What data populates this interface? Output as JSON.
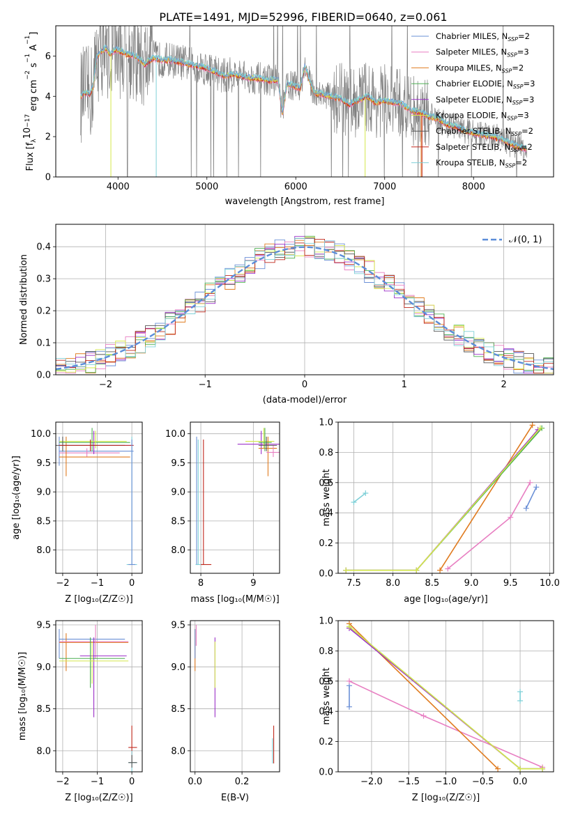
{
  "title": "PLATE=1491, MJD=52996, FIBERID=0640, z=0.061",
  "colors": {
    "chabrier_miles": "#6a8fd6",
    "salpeter_miles": "#e87fc2",
    "kroupa_miles": "#e07b1f",
    "chabrier_elodie": "#4caf50",
    "salpeter_elodie": "#9b30c8",
    "kroupa_elodie": "#d4e84a",
    "chabrier_stelib": "#555555",
    "salpeter_stelib": "#c0281c",
    "kroupa_stelib": "#7fd0d8",
    "data_spectrum": "#808080",
    "normal_curve": "#5b8dd9",
    "grid": "#b0b0b0"
  },
  "legend": [
    {
      "label": "Chabrier MILES, N",
      "sub": "SSP",
      "suffix": "=2",
      "color_key": "chabrier_miles"
    },
    {
      "label": "Salpeter MILES, N",
      "sub": "SSP",
      "suffix": "=3",
      "color_key": "salpeter_miles"
    },
    {
      "label": "Kroupa MILES, N",
      "sub": "SSP",
      "suffix": "=2",
      "color_key": "kroupa_miles"
    },
    {
      "label": "Chabrier ELODIE, N",
      "sub": "SSP",
      "suffix": "=3",
      "color_key": "chabrier_elodie"
    },
    {
      "label": "Salpeter ELODIE, N",
      "sub": "SSP",
      "suffix": "=3",
      "color_key": "salpeter_elodie"
    },
    {
      "label": "Kroupa ELODIE, N",
      "sub": "SSP",
      "suffix": "=3",
      "color_key": "kroupa_elodie"
    },
    {
      "label": "Chabrier STELIB, N",
      "sub": "SSP",
      "suffix": "=2",
      "color_key": "chabrier_stelib"
    },
    {
      "label": "Salpeter STELIB, N",
      "sub": "SSP",
      "suffix": "=2",
      "color_key": "salpeter_stelib"
    },
    {
      "label": "Kroupa STELIB, N",
      "sub": "SSP",
      "suffix": "=2",
      "color_key": "kroupa_stelib"
    }
  ],
  "chart_data": [
    {
      "id": "spectrum",
      "type": "line",
      "xlabel": "wavelength [Angstrom, rest frame]",
      "ylabel": "Flux [f",
      "ylabel_parts": [
        "λ",
        "10",
        "−17",
        " erg cm",
        "−2",
        " s",
        "−1",
        " A",
        "−1",
        "]"
      ],
      "xlim": [
        3300,
        8900
      ],
      "ylim": [
        0,
        7.5
      ],
      "xticks": [
        4000,
        5000,
        6000,
        7000,
        8000
      ],
      "yticks": [
        0,
        2,
        4,
        6
      ],
      "model_continuum": {
        "x": [
          3580,
          3620,
          3680,
          3720,
          3760,
          3800,
          3860,
          3920,
          3960,
          4000,
          4100,
          4200,
          4300,
          4400,
          4500,
          4600,
          4700,
          4800,
          4900,
          5000,
          5100,
          5200,
          5300,
          5400,
          5500,
          5600,
          5700,
          5800,
          5850,
          5900,
          6000,
          6050,
          6100,
          6200,
          6300,
          6400,
          6500,
          6600,
          6700,
          6800,
          6900,
          7000,
          7100,
          7200,
          7300,
          7400,
          7500,
          7600,
          7700,
          7800,
          7900,
          8000,
          8100,
          8200,
          8300,
          8400,
          8500,
          8600
        ],
        "y": [
          4.0,
          4.2,
          4.1,
          4.5,
          5.9,
          6.2,
          6.4,
          6.1,
          6.3,
          6.3,
          6.1,
          6.0,
          5.6,
          5.9,
          5.8,
          5.8,
          5.7,
          5.6,
          5.5,
          5.4,
          5.2,
          5.0,
          5.1,
          5.0,
          4.9,
          4.9,
          4.8,
          4.8,
          3.1,
          4.6,
          4.5,
          4.4,
          5.5,
          4.2,
          4.1,
          4.0,
          3.9,
          3.6,
          3.8,
          4.0,
          3.7,
          3.8,
          3.7,
          3.6,
          3.3,
          3.2,
          3.0,
          2.9,
          2.6,
          2.5,
          2.3,
          2.2,
          2.1,
          2.0,
          1.9,
          1.7,
          1.5,
          1.4
        ]
      }
    },
    {
      "id": "residuals",
      "type": "line",
      "xlabel": "(data-model)/error",
      "ylabel": "Normed distribution",
      "xlim": [
        -2.5,
        2.5
      ],
      "ylim": [
        0,
        0.47
      ],
      "xticks": [
        -2,
        -1,
        0,
        1,
        2
      ],
      "yticks": [
        0.0,
        0.1,
        0.2,
        0.3,
        0.4
      ],
      "legend_label": "𝒩(0, 1)"
    },
    {
      "id": "age_vs_Z",
      "type": "scatter",
      "xlabel": "Z [log₁₀(Z/Z☉)]",
      "ylabel": "age  [log₁₀(age/yr)]",
      "xlim": [
        -2.2,
        0.3
      ],
      "ylim": [
        7.6,
        10.2
      ],
      "xticks": [
        -2,
        -1,
        0
      ],
      "yticks": [
        8.0,
        8.5,
        9.0,
        9.5,
        10.0
      ]
    },
    {
      "id": "age_vs_mass",
      "type": "scatter",
      "xlabel": "mass [log₁₀(M/M☉)]",
      "xlim": [
        7.8,
        9.5
      ],
      "ylim": [
        7.6,
        10.2
      ],
      "xticks": [
        8,
        9
      ],
      "yticks": [
        8.0,
        8.5,
        9.0,
        9.5,
        10.0
      ]
    },
    {
      "id": "weight_vs_age",
      "type": "line",
      "xlabel": "age  [log₁₀(age/yr)]",
      "ylabel": "mass weight",
      "xlim": [
        7.3,
        10.05
      ],
      "ylim": [
        0,
        1.0
      ],
      "xticks": [
        7.5,
        8.0,
        8.5,
        9.0,
        9.5,
        10.0
      ],
      "yticks": [
        0.0,
        0.2,
        0.4,
        0.6,
        0.8,
        1.0
      ],
      "series": [
        {
          "color_key": "chabrier_miles",
          "x": [
            9.7,
            9.83
          ],
          "y": [
            0.43,
            0.57
          ]
        },
        {
          "color_key": "salpeter_miles",
          "x": [
            8.7,
            9.5,
            9.75
          ],
          "y": [
            0.03,
            0.37,
            0.6
          ]
        },
        {
          "color_key": "kroupa_miles",
          "x": [
            8.6,
            9.78
          ],
          "y": [
            0.02,
            0.98
          ]
        },
        {
          "color_key": "chabrier_elodie",
          "x": [
            7.4,
            8.3,
            9.9
          ],
          "y": [
            0.02,
            0.02,
            0.96
          ]
        },
        {
          "color_key": "salpeter_elodie",
          "x": [
            7.4,
            8.3,
            9.85
          ],
          "y": [
            0.02,
            0.02,
            0.95
          ]
        },
        {
          "color_key": "kroupa_elodie",
          "x": [
            7.4,
            8.3,
            9.88
          ],
          "y": [
            0.02,
            0.02,
            0.96
          ]
        },
        {
          "color_key": "kroupa_stelib",
          "x": [
            7.5,
            7.65
          ],
          "y": [
            0.47,
            0.53
          ]
        }
      ]
    },
    {
      "id": "mass_vs_Z",
      "type": "scatter",
      "xlabel": "Z [log₁₀(Z/Z☉)]",
      "ylabel": "mass [log₁₀(M/M☉)]",
      "xlim": [
        -2.2,
        0.3
      ],
      "ylim": [
        7.75,
        9.55
      ],
      "xticks": [
        -2,
        -1,
        0
      ],
      "yticks": [
        8.0,
        8.5,
        9.0,
        9.5
      ]
    },
    {
      "id": "mass_vs_ebv",
      "type": "scatter",
      "xlabel": "E(B-V)",
      "xlim": [
        -0.02,
        0.36
      ],
      "ylim": [
        7.75,
        9.55
      ],
      "xticks": [
        0.0,
        0.2
      ],
      "yticks": [
        8.0,
        8.5,
        9.0,
        9.5
      ]
    },
    {
      "id": "weight_vs_Z",
      "type": "line",
      "xlabel": "Z [log₁₀(Z/Z☉)]",
      "ylabel": "mass weight",
      "xlim": [
        -2.45,
        0.45
      ],
      "ylim": [
        0,
        1.0
      ],
      "xticks": [
        -2.0,
        -1.5,
        -1.0,
        -0.5,
        0.0
      ],
      "yticks": [
        0.0,
        0.2,
        0.4,
        0.6,
        0.8,
        1.0
      ],
      "series": [
        {
          "color_key": "chabrier_miles",
          "x": [
            -2.3,
            -2.3
          ],
          "y": [
            0.43,
            0.57
          ]
        },
        {
          "color_key": "salpeter_miles",
          "x": [
            -2.3,
            -1.3,
            0.3
          ],
          "y": [
            0.6,
            0.37,
            0.03
          ]
        },
        {
          "color_key": "kroupa_miles",
          "x": [
            -2.3,
            -0.3
          ],
          "y": [
            0.98,
            0.02
          ]
        },
        {
          "color_key": "chabrier_elodie",
          "x": [
            -2.3,
            0.0,
            0.3
          ],
          "y": [
            0.96,
            0.02,
            0.02
          ]
        },
        {
          "color_key": "salpeter_elodie",
          "x": [
            -2.3,
            0.0,
            0.3
          ],
          "y": [
            0.95,
            0.02,
            0.02
          ]
        },
        {
          "color_key": "kroupa_elodie",
          "x": [
            -2.3,
            0.0,
            0.3
          ],
          "y": [
            0.96,
            0.02,
            0.02
          ]
        },
        {
          "color_key": "kroupa_stelib",
          "x": [
            0.0,
            0.0
          ],
          "y": [
            0.47,
            0.53
          ]
        }
      ]
    }
  ]
}
